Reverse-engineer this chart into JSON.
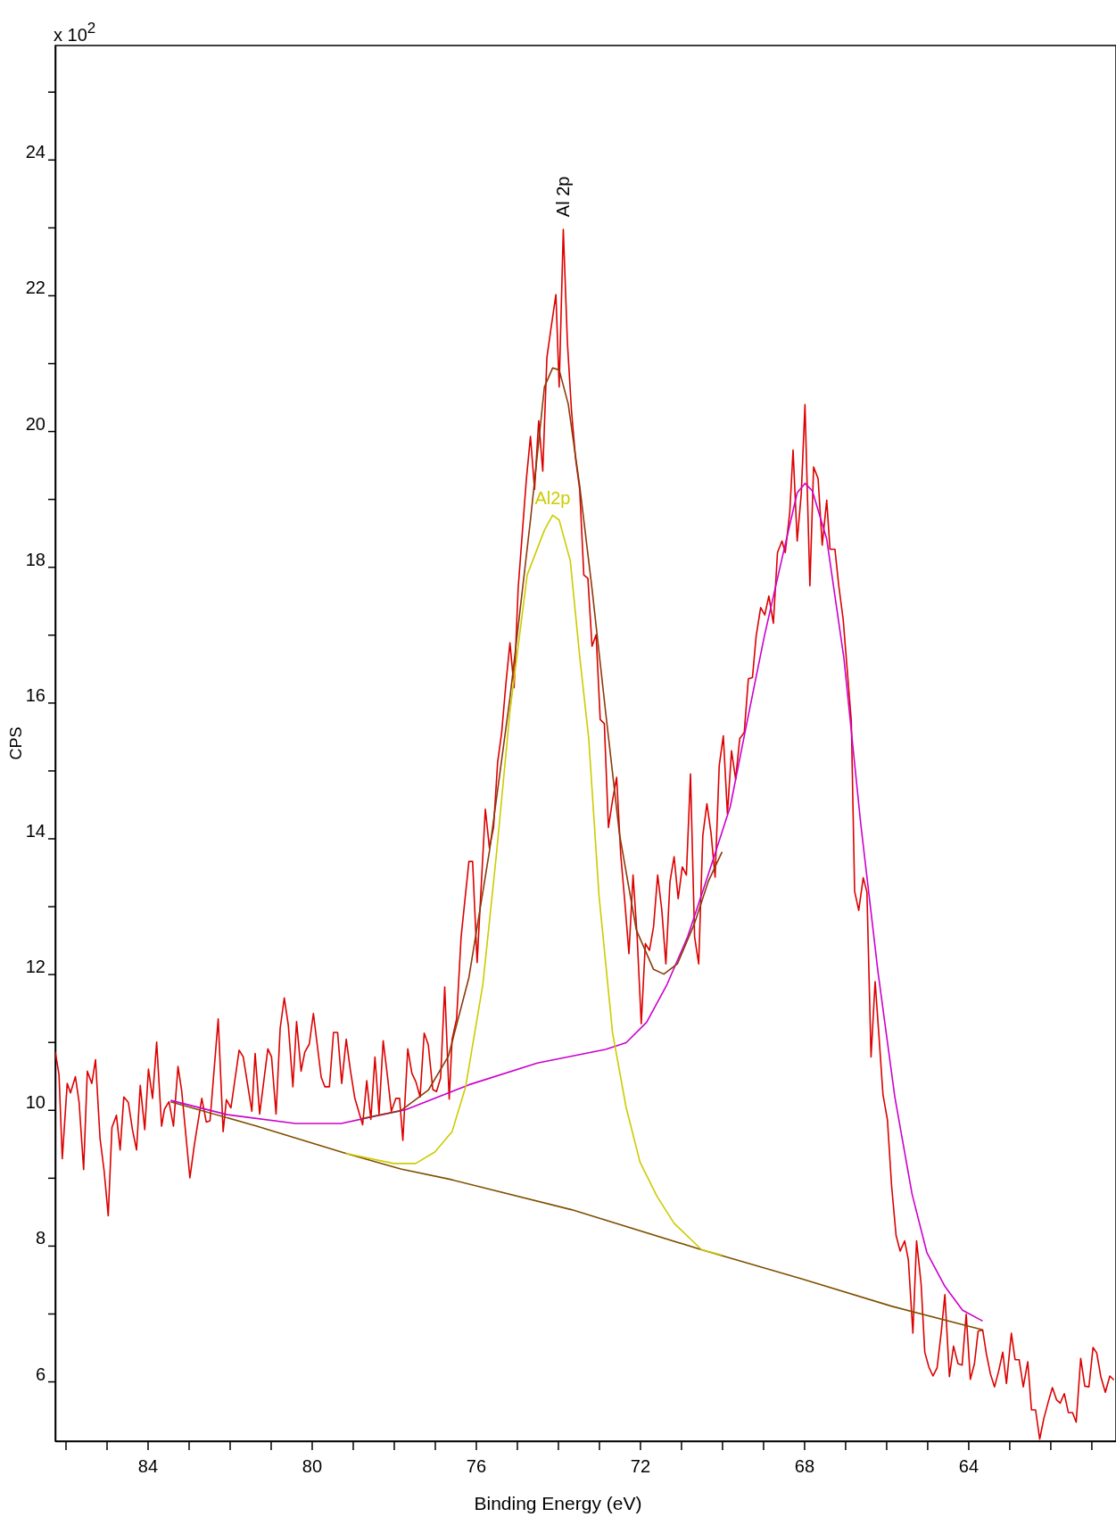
{
  "chart_data": {
    "type": "line",
    "xlabel": "Binding Energy (eV)",
    "ylabel": "CPS",
    "annotations": [
      "x 10$^{2}$",
      {
        "text": "Al 2p",
        "x": 73.87,
        "y": 22.97
      }
    ],
    "xlim": [
      86.25,
      60.4
    ],
    "ylim": [
      5.12,
      25.68
    ],
    "xticks": [
      {
        "value": 86,
        "label": null
      },
      {
        "value": 85,
        "label": null
      },
      84,
      {
        "value": 83,
        "label": null
      },
      {
        "value": 82,
        "label": null
      },
      {
        "value": 81,
        "label": null
      },
      80,
      {
        "value": 79,
        "label": null
      },
      {
        "value": 78,
        "label": null
      },
      {
        "value": 77,
        "label": null
      },
      76,
      {
        "value": 75,
        "label": null
      },
      {
        "value": 74,
        "label": null
      },
      {
        "value": 73,
        "label": null
      },
      72,
      {
        "value": 71,
        "label": null
      },
      {
        "value": 70,
        "label": null
      },
      {
        "value": 69,
        "label": null
      },
      68,
      {
        "value": 67,
        "label": null
      },
      {
        "value": 66,
        "label": null
      },
      {
        "value": 65,
        "label": null
      },
      64,
      {
        "value": 63,
        "label": null
      },
      {
        "value": 62,
        "label": null
      },
      {
        "value": 61,
        "label": null
      }
    ],
    "yticks": [
      6,
      {
        "value": 7,
        "label": null
      },
      8,
      {
        "value": 9,
        "label": null
      },
      10,
      {
        "value": 11,
        "label": null
      },
      12,
      {
        "value": 13,
        "label": null
      },
      14,
      {
        "value": 15,
        "label": null
      },
      16,
      {
        "value": 17,
        "label": null
      },
      18,
      {
        "value": 19,
        "label": null
      },
      20,
      {
        "value": 21,
        "label": null
      },
      22,
      {
        "value": 23,
        "label": null
      },
      24,
      {
        "value": 25,
        "label": null
      }
    ],
    "grid": false,
    "legend": false,
    "marker": "none",
    "line_style": "solid",
    "series": [
      {
        "color": "#dd0000",
        "x": [
          86.25,
          86.16,
          86.08,
          85.96,
          85.88,
          85.76,
          85.67,
          85.56,
          85.47,
          85.36,
          85.27,
          85.16,
          85.06,
          84.96,
          84.87,
          84.76,
          84.67,
          84.58,
          84.47,
          84.37,
          84.27,
          84.18,
          84.07,
          83.98,
          83.88,
          83.78,
          83.66,
          83.59,
          83.48,
          83.37,
          83.26,
          83.17,
          82.97,
          82.86,
          82.68,
          82.57,
          82.48,
          82.28,
          82.16,
          82.08,
          81.97,
          81.77,
          81.67,
          81.46,
          81.38,
          81.27,
          81.07,
          80.98,
          80.87,
          80.77,
          80.67,
          80.57,
          80.46,
          80.37,
          80.26,
          80.17,
          80.06,
          79.96,
          79.77,
          79.68,
          79.57,
          79.47,
          79.37,
          79.27,
          79.16,
          79.06,
          78.95,
          78.76,
          78.66,
          78.56,
          78.46,
          78.36,
          78.26,
          78.15,
          78.06,
          77.95,
          77.86,
          77.78,
          77.66,
          77.56,
          77.46,
          77.36,
          77.26,
          77.16,
          77.05,
          76.96,
          76.86,
          76.76,
          76.65,
          76.58,
          76.47,
          76.36,
          76.17,
          76.08,
          75.97,
          75.77,
          75.67,
          75.57,
          75.47,
          75.37,
          75.27,
          75.17,
          75.07,
          74.97,
          74.87,
          74.77,
          74.67,
          74.57,
          74.47,
          74.37,
          74.27,
          74.17,
          74.05,
          73.97,
          73.87,
          73.77,
          73.67,
          73.57,
          73.47,
          73.37,
          73.27,
          73.17,
          73.07,
          72.97,
          72.87,
          72.77,
          72.67,
          72.57,
          72.47,
          72.37,
          72.27,
          72.17,
          72.07,
          71.97,
          71.87,
          71.77,
          71.67,
          71.57,
          71.47,
          71.37,
          71.27,
          71.17,
          71.07,
          70.97,
          70.87,
          70.77,
          70.67,
          70.57,
          70.47,
          70.37,
          70.27,
          70.17,
          70.07,
          69.97,
          69.87,
          69.77,
          69.67,
          69.57,
          69.46,
          69.36,
          69.26,
          69.17,
          69.06,
          68.96,
          68.86,
          68.75,
          68.65,
          68.54,
          68.46,
          68.35,
          68.27,
          68.17,
          68.07,
          67.98,
          67.86,
          67.77,
          67.66,
          67.56,
          67.45,
          67.37,
          67.25,
          67.16,
          67.05,
          66.95,
          66.85,
          66.77,
          66.67,
          66.56,
          66.47,
          66.37,
          66.27,
          66.17,
          66.08,
          65.97,
          65.87,
          65.76,
          65.66,
          65.55,
          65.46,
          65.35,
          65.26,
          65.15,
          65.06,
          64.96,
          64.86,
          64.76,
          64.66,
          64.57,
          64.46,
          64.36,
          64.25,
          64.15,
          64.05,
          63.95,
          63.85,
          63.76,
          63.65,
          63.56,
          63.46,
          63.36,
          63.26,
          63.16,
          63.07,
          62.95,
          62.86,
          62.76,
          62.66,
          62.55,
          62.46,
          62.36,
          62.26,
          62.16,
          62.05,
          61.95,
          61.85,
          61.76,
          61.66,
          61.56,
          61.46,
          61.37,
          61.26,
          61.16,
          61.06,
          60.96,
          60.87,
          60.77,
          60.66,
          60.55,
          60.45
        ],
        "values": [
          10.85,
          10.52,
          9.28,
          10.39,
          10.25,
          10.49,
          10.11,
          9.12,
          10.57,
          10.39,
          10.74,
          9.58,
          9.1,
          8.44,
          9.74,
          9.92,
          9.41,
          10.19,
          10.11,
          9.71,
          9.41,
          10.36,
          9.71,
          10.6,
          10.17,
          11.0,
          9.76,
          10.01,
          10.12,
          9.76,
          10.64,
          10.28,
          9.0,
          9.49,
          10.17,
          9.82,
          9.84,
          11.34,
          9.68,
          10.15,
          10.03,
          10.88,
          10.78,
          9.98,
          10.83,
          9.94,
          10.9,
          10.78,
          9.94,
          11.2,
          11.65,
          11.24,
          10.34,
          11.3,
          10.57,
          10.85,
          10.97,
          11.42,
          10.48,
          10.34,
          10.34,
          11.14,
          11.14,
          10.39,
          11.04,
          10.59,
          10.17,
          9.78,
          10.43,
          9.86,
          10.78,
          9.94,
          11.02,
          10.47,
          9.98,
          10.17,
          10.17,
          9.55,
          10.9,
          10.54,
          10.41,
          10.19,
          11.13,
          10.96,
          10.3,
          10.27,
          10.47,
          11.81,
          10.16,
          11.04,
          11.34,
          12.55,
          13.66,
          13.66,
          12.17,
          14.43,
          13.86,
          14.16,
          15.12,
          15.57,
          16.27,
          16.88,
          16.22,
          17.68,
          18.49,
          19.29,
          19.92,
          19.14,
          20.15,
          19.41,
          21.08,
          21.51,
          22.01,
          20.65,
          22.97,
          21.31,
          20.3,
          19.59,
          19.14,
          17.88,
          17.83,
          16.83,
          17.0,
          15.75,
          15.69,
          14.16,
          14.56,
          14.9,
          13.76,
          13.06,
          12.3,
          13.46,
          12.55,
          11.27,
          12.45,
          12.35,
          12.7,
          13.46,
          12.95,
          12.15,
          13.36,
          13.73,
          13.11,
          13.58,
          13.46,
          14.95,
          12.55,
          12.15,
          14.04,
          14.51,
          14.08,
          13.43,
          15.07,
          15.51,
          14.36,
          15.29,
          14.87,
          15.47,
          15.56,
          16.35,
          16.37,
          16.98,
          17.4,
          17.29,
          17.57,
          17.17,
          18.21,
          18.38,
          18.21,
          18.81,
          19.72,
          18.38,
          19.08,
          20.39,
          17.72,
          19.47,
          19.3,
          18.32,
          18.98,
          18.26,
          18.26,
          17.74,
          17.23,
          16.48,
          15.72,
          13.22,
          12.94,
          13.42,
          13.21,
          10.78,
          11.89,
          11.03,
          10.23,
          9.85,
          8.89,
          8.15,
          7.92,
          8.07,
          7.79,
          6.71,
          8.07,
          7.44,
          6.43,
          6.21,
          6.08,
          6.2,
          6.72,
          7.28,
          6.07,
          6.52,
          6.26,
          6.24,
          6.99,
          6.03,
          6.26,
          6.74,
          6.76,
          6.41,
          6.11,
          5.92,
          6.15,
          6.43,
          5.97,
          6.71,
          6.32,
          6.32,
          5.92,
          6.29,
          5.58,
          5.58,
          5.15,
          5.45,
          5.7,
          5.91,
          5.73,
          5.68,
          5.82,
          5.54,
          5.54,
          5.4,
          6.34,
          5.93,
          5.92,
          6.5,
          6.42,
          6.07,
          5.84,
          6.08,
          6.02
        ]
      },
      {
        "color": "#7f4f00",
        "x": [
          83.44,
          81.34,
          79.17,
          77.83,
          76.65,
          73.67,
          70.5,
          68.05,
          65.88,
          63.65
        ],
        "values": [
          10.12,
          9.76,
          9.36,
          9.13,
          8.98,
          8.53,
          7.94,
          7.51,
          7.11,
          6.76
        ]
      },
      {
        "color": "#cc00cc",
        "x": [
          83.44,
          82.06,
          80.4,
          79.28,
          78.44,
          77.72,
          76.17,
          74.5,
          72.84,
          72.34,
          71.84,
          71.34,
          70.84,
          70.34,
          69.8,
          69.39,
          68.97,
          68.56,
          68.17,
          67.98,
          67.8,
          67.45,
          67.03,
          66.62,
          66.2,
          65.79,
          65.37,
          65.01,
          64.57,
          64.14,
          63.65
        ],
        "values": [
          10.14,
          9.93,
          9.8,
          9.8,
          9.91,
          10.0,
          10.37,
          10.69,
          10.89,
          10.99,
          11.29,
          11.85,
          12.55,
          13.46,
          14.47,
          15.72,
          16.98,
          18.07,
          19.09,
          19.23,
          19.12,
          18.41,
          16.65,
          14.21,
          12.03,
          10.19,
          8.76,
          7.9,
          7.4,
          7.05,
          6.89
        ]
      },
      {
        "color": "#8b3a0a",
        "x": [
          78.8,
          77.83,
          77.16,
          76.67,
          76.17,
          75.67,
          75.17,
          74.67,
          74.33,
          74.13,
          73.97,
          73.75,
          73.47,
          73.17,
          72.84,
          72.5,
          72.09,
          71.67,
          71.42,
          71.09,
          70.67,
          70.34,
          70.0
        ],
        "values": [
          9.87,
          9.99,
          10.29,
          10.79,
          11.95,
          13.81,
          16.07,
          18.69,
          20.65,
          20.93,
          20.9,
          20.4,
          19.19,
          17.68,
          15.87,
          14.06,
          12.65,
          12.07,
          12.0,
          12.15,
          12.75,
          13.36,
          13.8
        ]
      },
      {
        "name": "Al2p",
        "color": "#cccc00",
        "x": [
          79.17,
          78.0,
          77.47,
          77.0,
          76.58,
          76.25,
          75.83,
          75.5,
          75.17,
          74.75,
          74.33,
          74.13,
          73.97,
          73.7,
          73.47,
          73.25,
          73.0,
          72.67,
          72.34,
          72.0,
          71.59,
          71.17,
          70.5,
          70.0
        ],
        "values": [
          9.36,
          9.21,
          9.21,
          9.38,
          9.68,
          10.34,
          11.85,
          13.76,
          15.87,
          17.88,
          18.54,
          18.76,
          18.69,
          18.09,
          16.68,
          15.47,
          13.16,
          11.14,
          10.04,
          9.23,
          8.73,
          8.33,
          7.94,
          7.86
        ]
      }
    ]
  }
}
